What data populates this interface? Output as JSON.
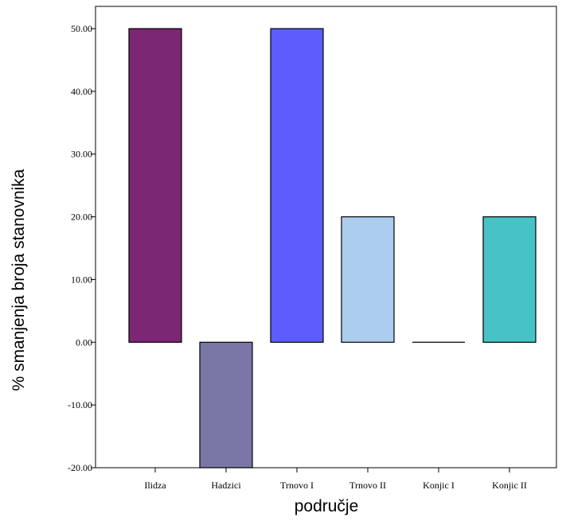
{
  "chart_data": {
    "type": "bar",
    "title": "",
    "xlabel": "područje",
    "ylabel": "% smanjenja broja stanovnika",
    "categories": [
      "Ilidza",
      "Hadzici",
      "Trnovo I",
      "Trnovo II",
      "Konjic I",
      "Konjic II"
    ],
    "values": [
      50,
      -20,
      50,
      20,
      0,
      20
    ],
    "colors": [
      "#7b2773",
      "#7a77a6",
      "#5d5dfd",
      "#adcdee",
      "#ffffff",
      "#47c3c6"
    ],
    "ylim": [
      -20,
      50
    ],
    "yticks": [
      50,
      40,
      30,
      20,
      10,
      0,
      -10,
      -20
    ],
    "ytick_labels": [
      "50.00",
      "40.00",
      "30.00",
      "20.00",
      "10.00",
      "0.00",
      "-10.00",
      "-20.00"
    ],
    "grid": false,
    "legend": "none"
  }
}
